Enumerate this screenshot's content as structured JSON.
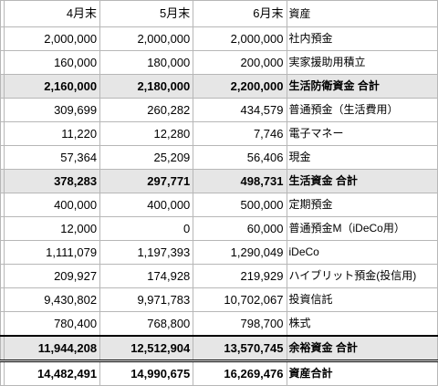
{
  "headers": {
    "col1": "4月末",
    "col2": "5月末",
    "col3": "6月末",
    "col4": "資産"
  },
  "rows": [
    {
      "c1": "2,000,000",
      "c2": "2,000,000",
      "c3": "2,000,000",
      "label": "社内預金"
    },
    {
      "c1": "160,000",
      "c2": "180,000",
      "c3": "200,000",
      "label": "実家援助用積立"
    },
    {
      "c1": "2,160,000",
      "c2": "2,180,000",
      "c3": "2,200,000",
      "label": "生活防衛資金 合計"
    },
    {
      "c1": "309,699",
      "c2": "260,282",
      "c3": "434,579",
      "label": "普通預金（生活費用）"
    },
    {
      "c1": "11,220",
      "c2": "12,280",
      "c3": "7,746",
      "label": "電子マネー"
    },
    {
      "c1": "57,364",
      "c2": "25,209",
      "c3": "56,406",
      "label": "現金"
    },
    {
      "c1": "378,283",
      "c2": "297,771",
      "c3": "498,731",
      "label": "生活資金 合計"
    },
    {
      "c1": "400,000",
      "c2": "400,000",
      "c3": "500,000",
      "label": "定期預金"
    },
    {
      "c1": "12,000",
      "c2": "0",
      "c3": "60,000",
      "label": "普通預金M（iDeCo用）"
    },
    {
      "c1": "1,111,079",
      "c2": "1,197,393",
      "c3": "1,290,049",
      "label": "iDeCo"
    },
    {
      "c1": "209,927",
      "c2": "174,928",
      "c3": "219,929",
      "label": "ハイブリット預金(投信用)"
    },
    {
      "c1": "9,430,802",
      "c2": "9,971,783",
      "c3": "10,702,067",
      "label": "投資信託"
    },
    {
      "c1": "780,400",
      "c2": "768,800",
      "c3": "798,700",
      "label": "株式"
    },
    {
      "c1": "11,944,208",
      "c2": "12,512,904",
      "c3": "13,570,745",
      "label": "余裕資金 合計"
    },
    {
      "c1": "14,482,491",
      "c2": "14,990,675",
      "c3": "16,269,476",
      "label": "資産合計"
    }
  ],
  "colors": {
    "subtotal_fill": "#e6e6e6",
    "gridline": "#b7b7b7"
  }
}
